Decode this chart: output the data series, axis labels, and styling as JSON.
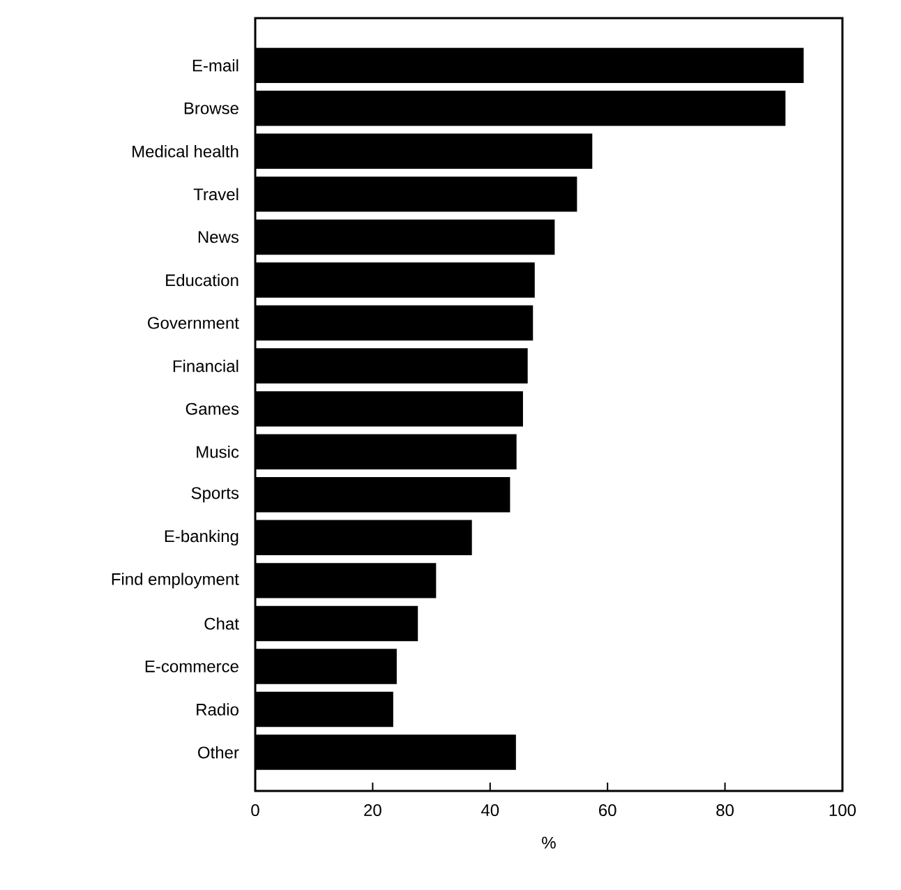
{
  "chart_data": {
    "type": "bar",
    "orientation": "horizontal",
    "xlabel": "%",
    "categories": [
      "E-mail",
      "Browse",
      "Medical health",
      "Travel",
      "News",
      "Education",
      "Government",
      "Financial",
      "Games",
      "Music",
      "Sports",
      "E-banking",
      "Find employment",
      "Chat",
      "E-commerce",
      "Radio",
      "Other"
    ],
    "values": [
      93.4,
      90.3,
      57.4,
      54.8,
      51.0,
      47.6,
      47.3,
      46.4,
      45.6,
      44.5,
      43.4,
      36.9,
      30.8,
      27.7,
      24.1,
      23.5,
      44.4
    ],
    "color": "#000000",
    "xlim": [
      0,
      100
    ],
    "xticks": [
      0,
      20,
      40,
      60,
      80,
      100
    ]
  }
}
